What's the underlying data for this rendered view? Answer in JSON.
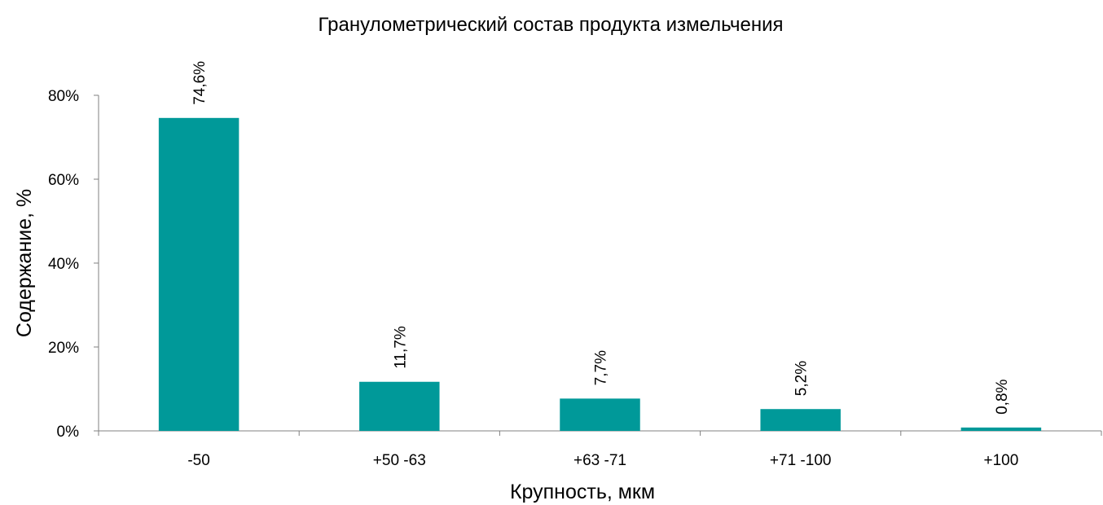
{
  "chart_data": {
    "type": "bar",
    "title": "Гранулометрический состав продукта измельчения",
    "xlabel": "Крупность, мкм",
    "ylabel": "Содержание, %",
    "categories": [
      "-50",
      "+50 -63",
      "+63 -71",
      "+71 -100",
      "+100"
    ],
    "values": [
      74.6,
      11.7,
      7.7,
      5.2,
      0.8
    ],
    "data_labels": [
      "74,6%",
      "11,7%",
      "7,7%",
      "5,2%",
      "0,8%"
    ],
    "ylim": [
      0,
      80
    ],
    "yticks": [
      0,
      20,
      40,
      60,
      80
    ],
    "ytick_labels": [
      "0%",
      "20%",
      "40%",
      "60%",
      "80%"
    ],
    "bar_color": "#009999",
    "grid": false,
    "legend": "none"
  }
}
